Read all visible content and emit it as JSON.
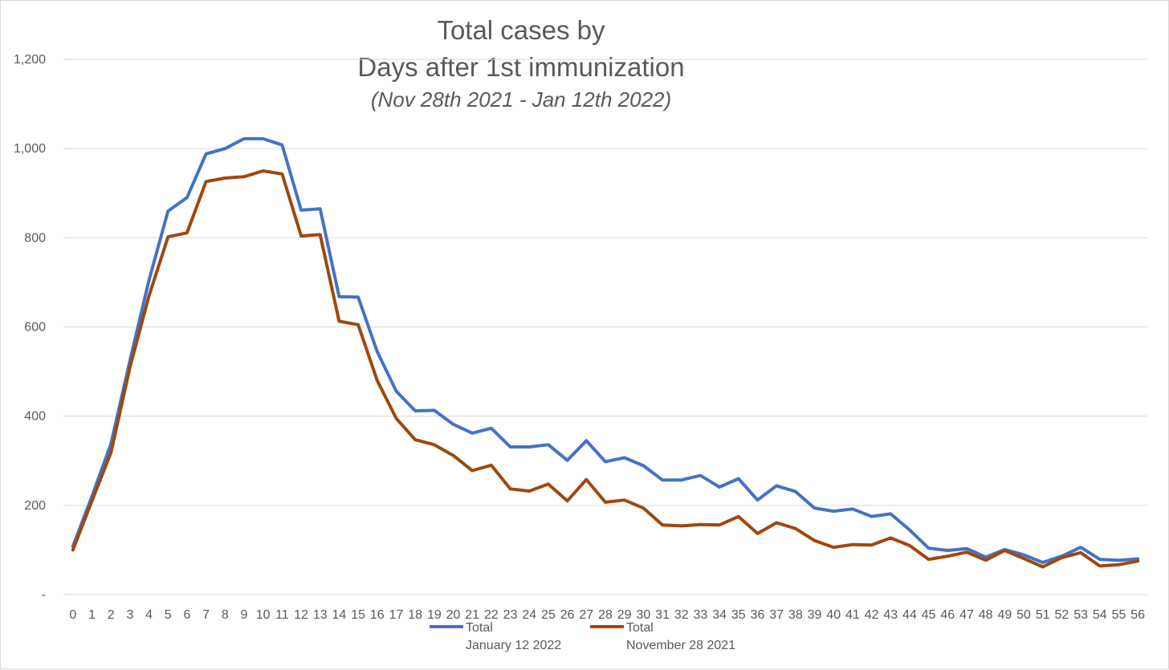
{
  "chart_data": {
    "type": "line",
    "title_line1": "Total cases by",
    "title_line2": "Days after 1st immunization",
    "subtitle": "(Nov 28th 2021 - Jan 12th 2022)",
    "xlabel": "",
    "ylabel": "",
    "ylim": [
      0,
      1200
    ],
    "yticks": [
      0,
      200,
      400,
      600,
      800,
      1000,
      1200
    ],
    "ytick_labels": [
      "-",
      "200",
      "400",
      "600",
      "800",
      "1,000",
      "1,200"
    ],
    "grid": "horizontal",
    "legend_position": "bottom",
    "x": [
      0,
      1,
      2,
      3,
      4,
      5,
      6,
      7,
      8,
      9,
      10,
      11,
      12,
      13,
      14,
      15,
      16,
      17,
      18,
      19,
      20,
      21,
      22,
      23,
      24,
      25,
      26,
      27,
      28,
      29,
      30,
      31,
      32,
      33,
      34,
      35,
      36,
      37,
      38,
      39,
      40,
      41,
      42,
      43,
      44,
      45,
      46,
      47,
      48,
      49,
      50,
      51,
      52,
      53,
      54,
      55,
      56
    ],
    "series": [
      {
        "name_line1": "Total",
        "name_line2": "January 12 2022",
        "color": "#4472c4",
        "values": [
          108,
          220,
          338,
          525,
          705,
          860,
          890,
          988,
          1000,
          1022,
          1022,
          1008,
          862,
          865,
          668,
          667,
          545,
          456,
          412,
          413,
          382,
          362,
          373,
          331,
          331,
          336,
          301,
          345,
          298,
          307,
          289,
          257,
          257,
          267,
          241,
          260,
          212,
          244,
          231,
          194,
          187,
          192,
          175,
          181,
          145,
          104,
          99,
          103,
          84,
          101,
          89,
          72,
          86,
          106,
          79,
          77,
          80
        ]
      },
      {
        "name_line1": "Total",
        "name_line2": "November 28 2021",
        "color": "#9e480e",
        "values": [
          100,
          210,
          318,
          510,
          670,
          802,
          811,
          926,
          934,
          937,
          950,
          943,
          804,
          807,
          613,
          605,
          480,
          395,
          347,
          336,
          312,
          278,
          290,
          237,
          232,
          248,
          210,
          258,
          207,
          212,
          194,
          156,
          154,
          157,
          156,
          175,
          137,
          161,
          148,
          121,
          106,
          112,
          111,
          127,
          110,
          79,
          86,
          95,
          77,
          99,
          81,
          62,
          83,
          94,
          64,
          67,
          75
        ]
      }
    ]
  }
}
